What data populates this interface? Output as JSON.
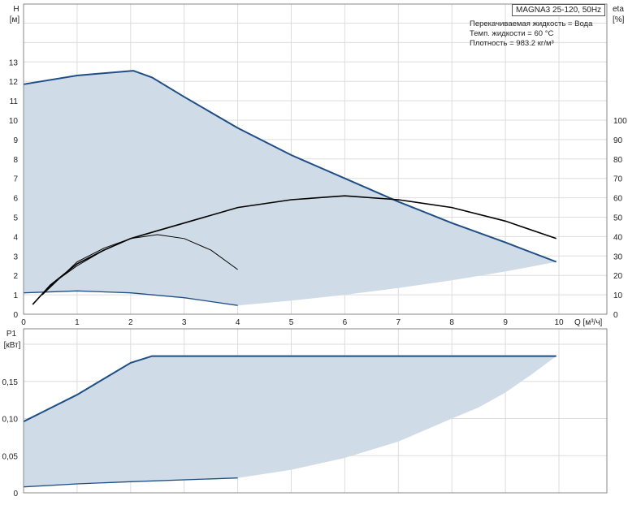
{
  "chart_data": [
    {
      "type": "line",
      "title": "MAGNA3 25-120, 50Hz",
      "annotations": [
        "Перекачиваемая жидкость = Вода",
        "Темп. жидкости = 60 °C",
        "Плотность = 983.2 кг/м³"
      ],
      "xlabel": "Q [м³/ч]",
      "ylabel": "H",
      "yunit": "[м]",
      "y2label": "eta",
      "y2unit": "[%]",
      "xlim": [
        0,
        10.9
      ],
      "ylim": [
        0,
        15.5
      ],
      "y2lim": [
        0,
        155
      ],
      "xticks": [
        "0",
        "1",
        "2",
        "3",
        "4",
        "5",
        "6",
        "7",
        "8",
        "9",
        "10"
      ],
      "yticks": [
        "0",
        "1",
        "2",
        "3",
        "4",
        "5",
        "6",
        "7",
        "8",
        "9",
        "10",
        "11",
        "12",
        "13"
      ],
      "y2ticks": [
        "0",
        "10",
        "20",
        "30",
        "40",
        "50",
        "60",
        "70",
        "80",
        "90",
        "100"
      ],
      "grid": true,
      "area_color": "#cfdbe7",
      "curve_color": "#1f4e85",
      "eta_color": "#000000",
      "series": [
        {
          "kind": "H-max",
          "x": [
            0,
            1,
            2.05,
            2.4,
            3,
            4,
            5,
            6,
            7,
            8,
            9,
            9.95
          ],
          "y": [
            11.85,
            12.3,
            12.55,
            12.2,
            11.2,
            9.6,
            8.2,
            7.0,
            5.8,
            4.7,
            3.7,
            2.7
          ]
        },
        {
          "kind": "H-min",
          "x": [
            0,
            1,
            2,
            3,
            4
          ],
          "y": [
            1.1,
            1.2,
            1.1,
            0.85,
            0.45
          ]
        },
        {
          "kind": "H-area-lower",
          "x": [
            4,
            5,
            6,
            7,
            8,
            9,
            9.95
          ],
          "y": [
            0.45,
            0.7,
            1.0,
            1.35,
            1.75,
            2.2,
            2.7
          ]
        },
        {
          "kind": "eta-max",
          "x": [
            0.17,
            0.5,
            1,
            1.5,
            2,
            2.5,
            3,
            4,
            5,
            6,
            7,
            8,
            9,
            9.95
          ],
          "y2": [
            5,
            15,
            26,
            33,
            39,
            43,
            47,
            55,
            59,
            61,
            59,
            55,
            48,
            39
          ]
        },
        {
          "kind": "eta-mid",
          "x": [
            0.35,
            0.6,
            1,
            1.5,
            2,
            2.5
          ],
          "y2": [
            10,
            17,
            25,
            33,
            39,
            43
          ]
        },
        {
          "kind": "eta-min",
          "x": [
            0.35,
            1,
            1.5,
            2,
            2.5,
            3,
            3.5,
            4
          ],
          "y2": [
            10,
            27,
            34,
            39,
            41,
            39,
            33,
            23
          ]
        }
      ]
    },
    {
      "type": "line",
      "xlabel": "Q [м³/ч]",
      "ylabel": "P1",
      "yunit": "[кВт]",
      "xlim": [
        0,
        10.9
      ],
      "ylim": [
        0,
        0.2
      ],
      "xticks": [
        "0",
        "1",
        "2",
        "3",
        "4",
        "5",
        "6",
        "7",
        "8",
        "9",
        "10"
      ],
      "yticks": [
        "0",
        "0,05",
        "0,10",
        "0,15"
      ],
      "grid": true,
      "series": [
        {
          "kind": "P1-max",
          "x": [
            0,
            1,
            2,
            2.4,
            9.95
          ],
          "y": [
            0.096,
            0.132,
            0.175,
            0.184,
            0.184
          ]
        },
        {
          "kind": "P1-min",
          "x": [
            0,
            1,
            2,
            4
          ],
          "y": [
            0.008,
            0.012,
            0.015,
            0.02
          ]
        },
        {
          "kind": "P1-area-lower",
          "x": [
            4,
            5,
            6,
            7,
            8,
            8.5,
            9,
            9.5,
            9.95
          ],
          "y": [
            0.02,
            0.031,
            0.047,
            0.069,
            0.1,
            0.115,
            0.135,
            0.16,
            0.184
          ]
        }
      ]
    }
  ]
}
